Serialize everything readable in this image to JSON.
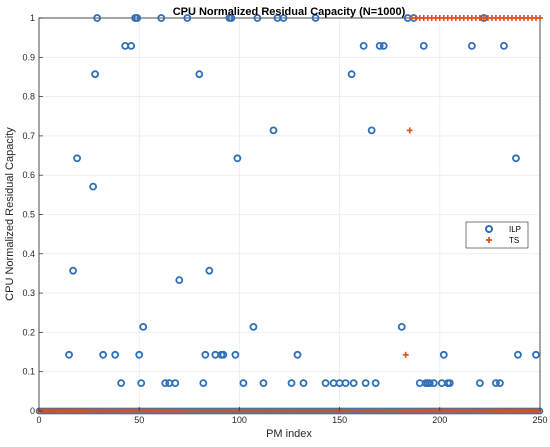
{
  "chart_data": {
    "type": "scatter",
    "title": "CPU Normalized Residual Capacity (N=1000)",
    "xlabel": "PM index",
    "ylabel": "CPU Normalized Residual Capacity",
    "xlim": [
      0,
      250
    ],
    "ylim": [
      0,
      1
    ],
    "x_ticks": [
      0,
      50,
      100,
      150,
      200,
      250
    ],
    "y_ticks": [
      0,
      0.1,
      0.2,
      0.3,
      0.4,
      0.5,
      0.6,
      0.7,
      0.8,
      0.9,
      1
    ],
    "grid": true,
    "legend_position": "right",
    "series": [
      {
        "name": "ILP",
        "marker": "circle",
        "color": "#2f6fba",
        "points": [
          [
            15,
            0.143
          ],
          [
            17,
            0.357
          ],
          [
            19,
            0.643
          ],
          [
            27,
            0.571
          ],
          [
            28,
            0.857
          ],
          [
            29,
            1.0
          ],
          [
            32,
            0.143
          ],
          [
            38,
            0.143
          ],
          [
            41,
            0.071
          ],
          [
            43,
            0.929
          ],
          [
            46,
            0.929
          ],
          [
            48,
            1.0
          ],
          [
            49,
            1.0
          ],
          [
            50,
            0.143
          ],
          [
            51,
            0.071
          ],
          [
            52,
            0.214
          ],
          [
            61,
            1.0
          ],
          [
            63,
            0.071
          ],
          [
            65,
            0.071
          ],
          [
            68,
            0.071
          ],
          [
            70,
            0.333
          ],
          [
            74,
            1.0
          ],
          [
            80,
            0.857
          ],
          [
            82,
            0.071
          ],
          [
            83,
            0.143
          ],
          [
            85,
            0.357
          ],
          [
            88,
            0.143
          ],
          [
            91,
            0.143
          ],
          [
            92,
            0.143
          ],
          [
            95,
            1.0
          ],
          [
            96,
            1.0
          ],
          [
            98,
            0.143
          ],
          [
            99,
            0.643
          ],
          [
            102,
            0.071
          ],
          [
            107,
            0.214
          ],
          [
            109,
            1.0
          ],
          [
            112,
            0.071
          ],
          [
            117,
            0.714
          ],
          [
            119,
            1.0
          ],
          [
            122,
            1.0
          ],
          [
            126,
            0.071
          ],
          [
            129,
            0.143
          ],
          [
            132,
            0.071
          ],
          [
            138,
            1.0
          ],
          [
            143,
            0.071
          ],
          [
            147,
            0.071
          ],
          [
            150,
            0.071
          ],
          [
            153,
            0.071
          ],
          [
            156,
            0.857
          ],
          [
            157,
            0.071
          ],
          [
            162,
            0.929
          ],
          [
            163,
            0.071
          ],
          [
            166,
            0.714
          ],
          [
            168,
            0.071
          ],
          [
            170,
            0.929
          ],
          [
            172,
            0.929
          ],
          [
            181,
            0.214
          ],
          [
            184,
            1.0
          ],
          [
            187,
            1.0
          ],
          [
            190,
            0.071
          ],
          [
            192,
            0.929
          ],
          [
            193,
            0.071
          ],
          [
            194,
            0.071
          ],
          [
            195,
            0.071
          ],
          [
            197,
            0.071
          ],
          [
            201,
            0.071
          ],
          [
            202,
            0.143
          ],
          [
            204,
            0.071
          ],
          [
            205,
            0.071
          ],
          [
            216,
            0.929
          ],
          [
            220,
            0.071
          ],
          [
            222,
            1.0
          ],
          [
            228,
            0.071
          ],
          [
            230,
            0.071
          ],
          [
            232,
            0.929
          ],
          [
            238,
            0.643
          ],
          [
            239,
            0.143
          ],
          [
            248,
            0.143
          ]
        ]
      },
      {
        "name": "TS",
        "marker": "plus",
        "color": "#d95319",
        "points": [
          [
            183,
            0.143
          ],
          [
            185,
            0.714
          ],
          [
            186,
            1.0
          ],
          [
            188,
            1.0
          ],
          [
            190,
            1.0
          ],
          [
            192,
            1.0
          ],
          [
            194,
            1.0
          ],
          [
            196,
            1.0
          ],
          [
            198,
            1.0
          ],
          [
            200,
            1.0
          ],
          [
            202,
            1.0
          ],
          [
            204,
            1.0
          ],
          [
            206,
            1.0
          ],
          [
            208,
            1.0
          ],
          [
            210,
            1.0
          ],
          [
            212,
            1.0
          ],
          [
            214,
            1.0
          ],
          [
            216,
            1.0
          ],
          [
            218,
            1.0
          ],
          [
            220,
            1.0
          ],
          [
            222,
            1.0
          ],
          [
            224,
            1.0
          ],
          [
            226,
            1.0
          ],
          [
            228,
            1.0
          ],
          [
            230,
            1.0
          ],
          [
            232,
            1.0
          ],
          [
            234,
            1.0
          ],
          [
            236,
            1.0
          ],
          [
            238,
            1.0
          ],
          [
            240,
            1.0
          ],
          [
            242,
            1.0
          ],
          [
            244,
            1.0
          ],
          [
            246,
            1.0
          ],
          [
            248,
            1.0
          ],
          [
            250,
            1.0
          ]
        ]
      }
    ],
    "zero_baseline": {
      "series": "TS",
      "x_range": [
        0,
        250
      ],
      "y": 0,
      "note": "many ILP and TS points at y = 0 across all PM indices"
    }
  }
}
